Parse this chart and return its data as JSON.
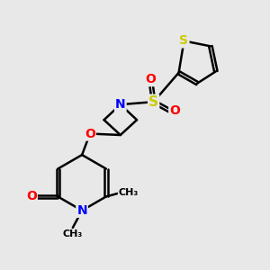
{
  "background_color": "#e8e8e8",
  "bond_color": "#000000",
  "atom_colors": {
    "N": "#0000ff",
    "O": "#ff0000",
    "S": "#cccc00",
    "C": "#000000"
  },
  "bond_width": 1.8,
  "figsize": [
    3.0,
    3.0
  ],
  "dpi": 100,
  "xlim": [
    0,
    10
  ],
  "ylim": [
    0,
    10
  ]
}
